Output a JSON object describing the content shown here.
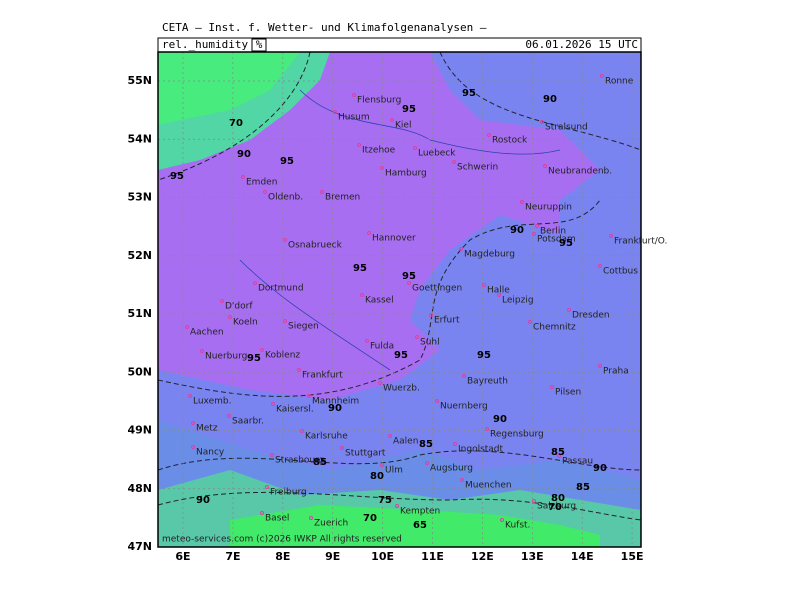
{
  "header": {
    "title": "CETA — Inst. f. Wetter- und Klimafolgenanalysen —",
    "field": "rel._humidity",
    "unit": "%",
    "valid": "06.01.2026  15 UTC"
  },
  "lat_ticks": [
    {
      "value": 55,
      "label": "55N"
    },
    {
      "value": 54,
      "label": "54N"
    },
    {
      "value": 53,
      "label": "53N"
    },
    {
      "value": 52,
      "label": "52N"
    },
    {
      "value": 51,
      "label": "51N"
    },
    {
      "value": 50,
      "label": "50N"
    },
    {
      "value": 49,
      "label": "49N"
    },
    {
      "value": 48,
      "label": "48N"
    },
    {
      "value": 47,
      "label": "47N"
    }
  ],
  "lon_ticks": [
    {
      "value": 6,
      "label": "6E"
    },
    {
      "value": 7,
      "label": "7E"
    },
    {
      "value": 8,
      "label": "8E"
    },
    {
      "value": 9,
      "label": "9E"
    },
    {
      "value": 10,
      "label": "10E"
    },
    {
      "value": 11,
      "label": "11E"
    },
    {
      "value": 12,
      "label": "12E"
    },
    {
      "value": 13,
      "label": "13E"
    },
    {
      "value": 14,
      "label": "14E"
    },
    {
      "value": 15,
      "label": "15E"
    }
  ],
  "cities": [
    "Ronne",
    "Flensburg",
    "Husum",
    "Kiel",
    "Rostock",
    "Stralsund",
    "Itzehoe",
    "Luebeck",
    "Schwerin",
    "Neubrandenb.",
    "Emden",
    "Hamburg",
    "Oldenb.",
    "Bremen",
    "Neuruppin",
    "Berlin",
    "Potsdam",
    "Frankfurt/O.",
    "Osnabrueck",
    "Hannover",
    "Magdeburg",
    "Cottbus",
    "Dortmund",
    "Goettingen",
    "Kassel",
    "Halle",
    "Leipzig",
    "D'dorf",
    "Koeln",
    "Siegen",
    "Erfurt",
    "Chemnitz",
    "Dresden",
    "Aachen",
    "Fulda",
    "Suhl",
    "Nuerburg",
    "Koblenz",
    "Frankfurt",
    "Bayreuth",
    "Praha",
    "Wuerzb.",
    "Pilsen",
    "Luxemb.",
    "Mannheim",
    "Kaisersl.",
    "Nuernberg",
    "Metz",
    "Saarbr.",
    "Karlsruhe",
    "Regensburg",
    "Ingolstadt",
    "Nancy",
    "Stuttgart",
    "Aalen",
    "Passau",
    "Strasbourg",
    "Ulm",
    "Augsburg",
    "Muenchen",
    "Freiburg",
    "Salzburg",
    "Basel",
    "Zuerich",
    "Kempten",
    "Kufst."
  ],
  "contour_labels": [
    "95",
    "95",
    "95",
    "95",
    "95",
    "95",
    "95",
    "95",
    "95",
    "95",
    "90",
    "90",
    "90",
    "90",
    "90",
    "90",
    "90",
    "70",
    "70",
    "70",
    "85",
    "85",
    "85",
    "85",
    "80",
    "80",
    "75",
    "65"
  ],
  "footer": "meteo-services.com (c)2026 IWKP All rights reserved"
}
